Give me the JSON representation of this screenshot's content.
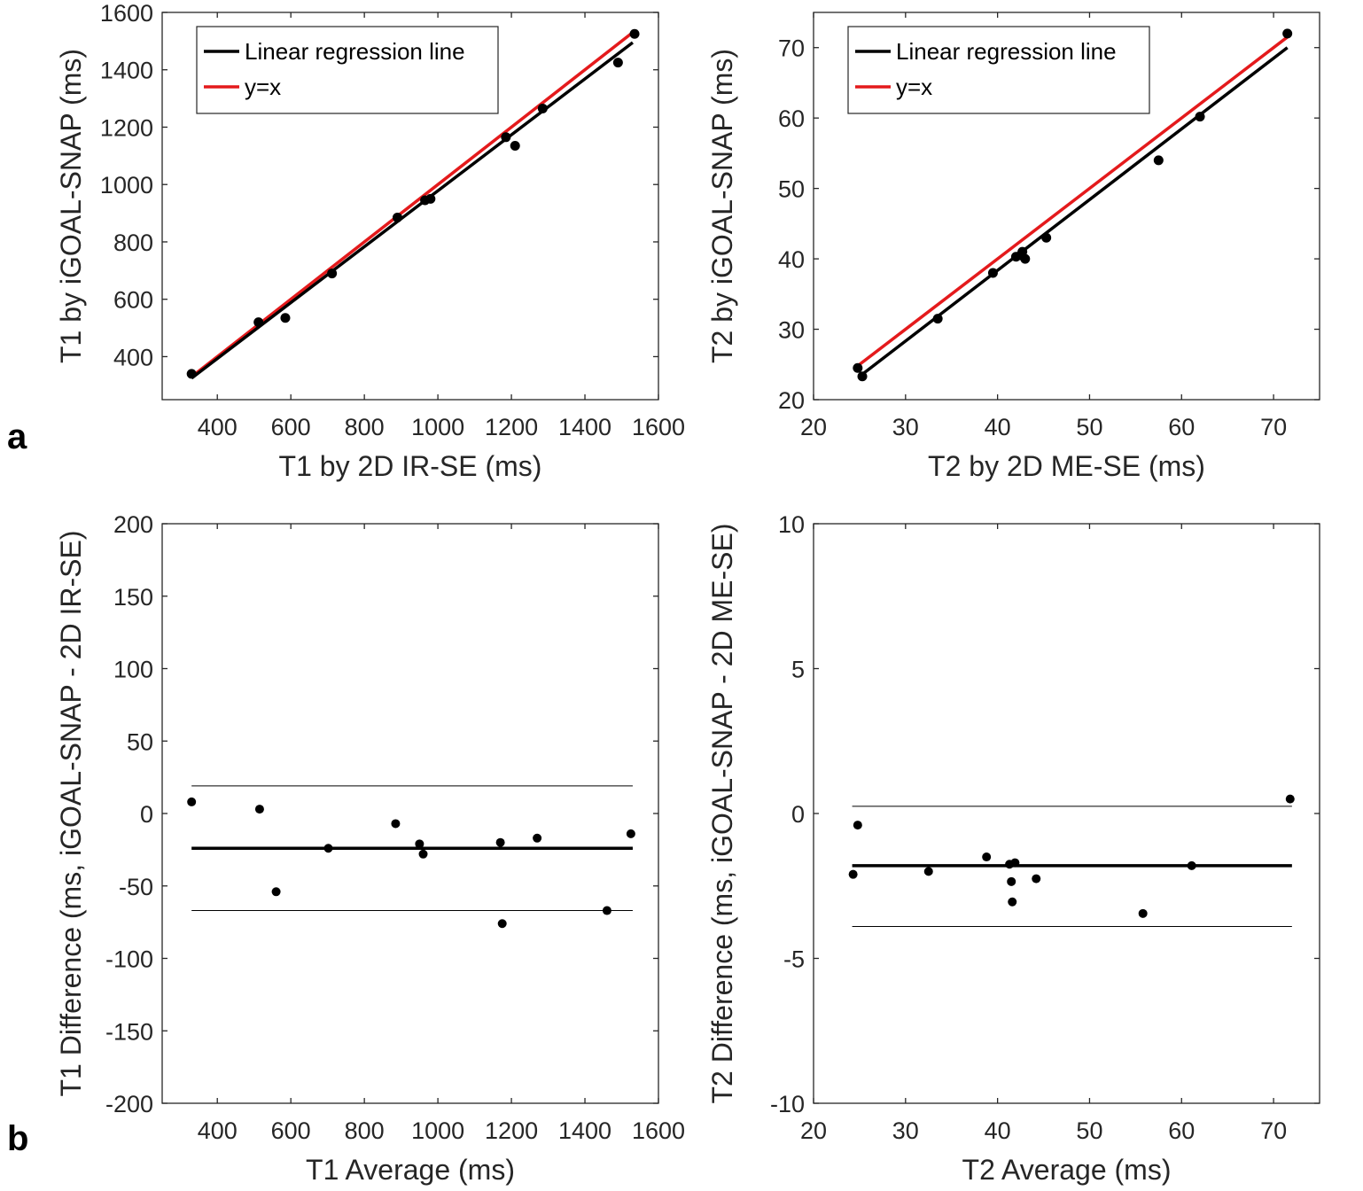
{
  "panel_labels": {
    "a": "a",
    "b": "b"
  },
  "colors": {
    "regression": "#000000",
    "identity": "#e41a1c",
    "points": "#000000",
    "axes": "#262626"
  },
  "chart_data": [
    {
      "id": "t1_scatter",
      "type": "scatter",
      "xlabel": "T1 by 2D IR-SE (ms)",
      "ylabel": "T1 by iGOAL-SNAP (ms)",
      "xlim": [
        250,
        1600
      ],
      "ylim": [
        250,
        1600
      ],
      "xticks": [
        400,
        600,
        800,
        1000,
        1200,
        1400,
        1600
      ],
      "yticks": [
        400,
        600,
        800,
        1000,
        1200,
        1400,
        1600
      ],
      "legend": {
        "location": "top-left",
        "regression_label": "Linear regression line",
        "identity_label": "y=x"
      },
      "regression": {
        "x": [
          330,
          1530
        ],
        "y": [
          325,
          1495
        ]
      },
      "identity": {
        "x": [
          330,
          1530
        ],
        "y": [
          330,
          1530
        ]
      },
      "points": {
        "x": [
          330,
          512,
          585,
          712,
          890,
          965,
          980,
          1185,
          1210,
          1285,
          1490,
          1535
        ],
        "y": [
          340,
          520,
          535,
          690,
          885,
          945,
          950,
          1165,
          1135,
          1265,
          1425,
          1525
        ]
      }
    },
    {
      "id": "t2_scatter",
      "type": "scatter",
      "xlabel": "T2 by 2D ME-SE (ms)",
      "ylabel": "T2 by iGOAL-SNAP (ms)",
      "xlim": [
        20,
        75
      ],
      "ylim": [
        20,
        75
      ],
      "xticks": [
        20,
        30,
        40,
        50,
        60,
        70
      ],
      "yticks": [
        20,
        30,
        40,
        50,
        60,
        70
      ],
      "legend": {
        "location": "top-left",
        "regression_label": "Linear regression line",
        "identity_label": "y=x"
      },
      "regression": {
        "x": [
          25,
          71.5
        ],
        "y": [
          23.3,
          70
        ]
      },
      "identity": {
        "x": [
          25,
          71.5
        ],
        "y": [
          25,
          71.5
        ]
      },
      "points": {
        "x": [
          24.8,
          25.3,
          33.5,
          39.5,
          42.0,
          42.5,
          42.7,
          43.0,
          45.3,
          57.5,
          62.0,
          71.5
        ],
        "y": [
          24.5,
          23.3,
          31.5,
          38.0,
          40.3,
          40.5,
          41.0,
          40.0,
          43.0,
          54.0,
          60.2,
          72.0
        ]
      }
    },
    {
      "id": "t1_bland_altman",
      "type": "scatter",
      "xlabel": "T1 Average (ms)",
      "ylabel": "T1 Difference (ms, iGOAL-SNAP - 2D IR-SE)",
      "xlim": [
        250,
        1600
      ],
      "ylim": [
        -200,
        200
      ],
      "xticks": [
        400,
        600,
        800,
        1000,
        1200,
        1400,
        1600
      ],
      "yticks": [
        -200,
        -150,
        -100,
        -50,
        0,
        50,
        100,
        150,
        200
      ],
      "mean_line": -24,
      "loa": [
        19,
        -67
      ],
      "line_x": [
        330,
        1530
      ],
      "points": {
        "x": [
          330,
          515,
          560,
          702,
          885,
          950,
          960,
          1170,
          1175,
          1270,
          1460,
          1525
        ],
        "y": [
          8,
          3,
          -54,
          -24,
          -7,
          -21,
          -28,
          -20,
          -76,
          -17,
          -67,
          -14
        ]
      }
    },
    {
      "id": "t2_bland_altman",
      "type": "scatter",
      "xlabel": "T2 Average (ms)",
      "ylabel": "T2 Difference (ms, iGOAL-SNAP - 2D ME-SE)",
      "xlim": [
        20,
        75
      ],
      "ylim": [
        -10,
        10
      ],
      "xticks": [
        20,
        30,
        40,
        50,
        60,
        70
      ],
      "yticks": [
        -10,
        -5,
        0,
        5,
        10
      ],
      "mean_line": -1.8,
      "loa": [
        0.25,
        -3.9
      ],
      "line_x": [
        24.2,
        72
      ],
      "points": {
        "x": [
          24.3,
          24.8,
          32.5,
          38.8,
          41.3,
          41.5,
          41.6,
          41.9,
          44.2,
          55.8,
          61.1,
          71.8
        ],
        "y": [
          -2.1,
          -0.4,
          -2.0,
          -1.5,
          -1.75,
          -2.35,
          -3.05,
          -1.7,
          -2.25,
          -3.45,
          -1.8,
          0.5
        ]
      }
    }
  ]
}
